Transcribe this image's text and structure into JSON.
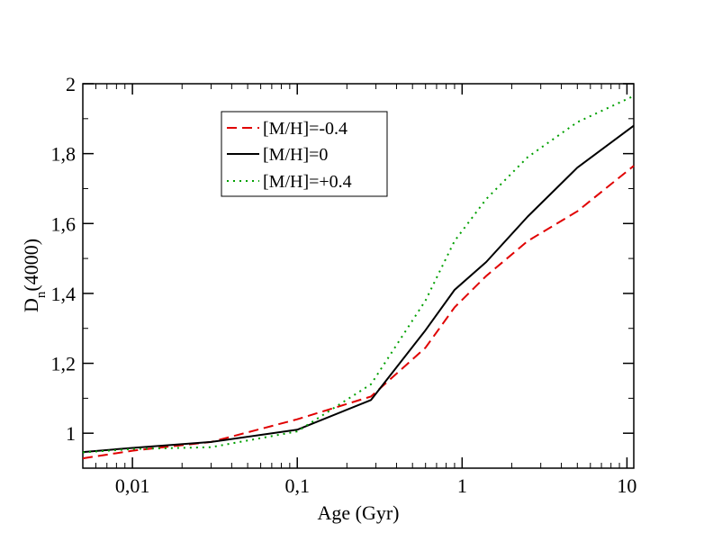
{
  "chart_data": {
    "type": "line",
    "title": "",
    "xlabel": "Age (Gyr)",
    "ylabel_main": "D",
    "ylabel_sub": "n",
    "ylabel_rest": "(4000)",
    "xscale": "log",
    "xlim": [
      0.005,
      11
    ],
    "ylim": [
      0.9,
      2.0
    ],
    "xticks": [
      {
        "value": 0.01,
        "label": "0,01"
      },
      {
        "value": 0.1,
        "label": "0,1"
      },
      {
        "value": 1,
        "label": "1"
      },
      {
        "value": 10,
        "label": "10"
      }
    ],
    "yticks": [
      {
        "value": 1.0,
        "label": "1"
      },
      {
        "value": 1.2,
        "label": "1,2"
      },
      {
        "value": 1.4,
        "label": "1,4"
      },
      {
        "value": 1.6,
        "label": "1,6"
      },
      {
        "value": 1.8,
        "label": "1,8"
      },
      {
        "value": 2.0,
        "label": "2"
      }
    ],
    "grid": false,
    "legend_position": "top-left",
    "series": [
      {
        "name": "[M/H]=-0.4",
        "color": "#e00000",
        "style": "dashed",
        "x": [
          0.005,
          0.01,
          0.03,
          0.1,
          0.28,
          0.6,
          0.9,
          1.4,
          2.5,
          5,
          11
        ],
        "y": [
          0.928,
          0.95,
          0.975,
          1.04,
          1.105,
          1.245,
          1.36,
          1.45,
          1.55,
          1.635,
          1.765
        ]
      },
      {
        "name": "[M/H]=0",
        "color": "#000000",
        "style": "solid",
        "x": [
          0.005,
          0.01,
          0.03,
          0.1,
          0.28,
          0.6,
          0.9,
          1.4,
          2.5,
          5,
          11
        ],
        "y": [
          0.946,
          0.958,
          0.975,
          1.01,
          1.095,
          1.295,
          1.41,
          1.49,
          1.62,
          1.76,
          1.88
        ]
      },
      {
        "name": "[M/H]=+0.4",
        "color": "#00a000",
        "style": "dotted",
        "x": [
          0.005,
          0.01,
          0.03,
          0.1,
          0.28,
          0.6,
          0.9,
          1.4,
          2.5,
          5,
          11
        ],
        "y": [
          0.945,
          0.955,
          0.96,
          1.005,
          1.14,
          1.38,
          1.55,
          1.67,
          1.79,
          1.89,
          1.965
        ]
      }
    ]
  }
}
